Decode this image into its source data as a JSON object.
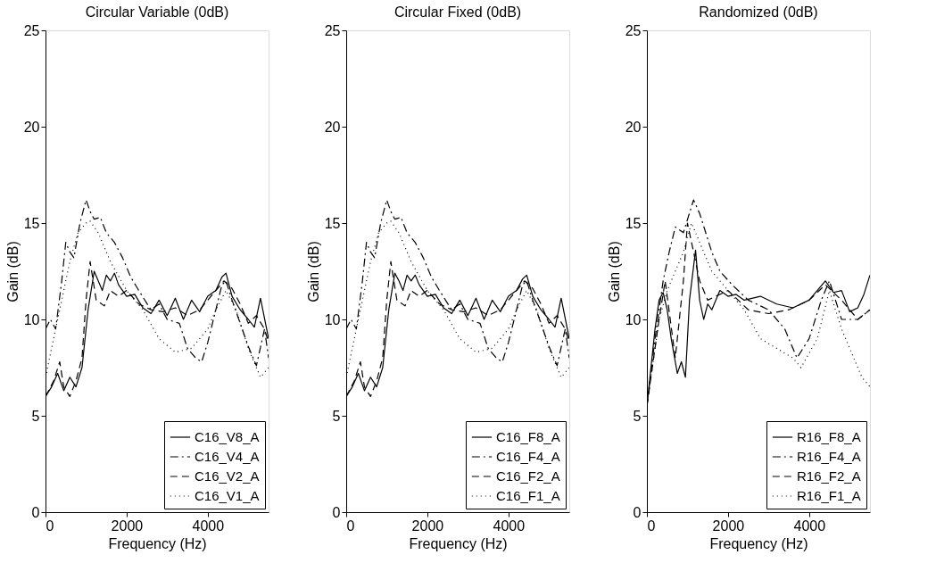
{
  "chart_data": [
    {
      "type": "line",
      "title": "Circular Variable (0dB)",
      "xlabel": "Frequency (Hz)",
      "ylabel": "Gain (dB)",
      "xlim": [
        0,
        5500
      ],
      "ylim": [
        0,
        25
      ],
      "xticks": [
        0,
        2000,
        4000
      ],
      "yticks": [
        0,
        5,
        10,
        15,
        20,
        25
      ],
      "grid": false,
      "legend": "bottom right",
      "series": [
        {
          "name": "C16_V8_A",
          "color": "#000000",
          "line_style": "solid",
          "x": [
            0,
            150,
            300,
            450,
            600,
            750,
            900,
            1050,
            1200,
            1300,
            1400,
            1500,
            1600,
            1700,
            1800,
            2000,
            2200,
            2400,
            2600,
            2800,
            3000,
            3200,
            3400,
            3600,
            3800,
            4000,
            4200,
            4350,
            4450,
            4600,
            4800,
            5000,
            5150,
            5300,
            5500
          ],
          "values": [
            6,
            6.5,
            7.2,
            6.3,
            7,
            6.5,
            7.5,
            10.5,
            12.5,
            12,
            11.5,
            12.3,
            12,
            12.4,
            11.8,
            11.2,
            11.3,
            10.6,
            10.3,
            11,
            10.2,
            11.1,
            10,
            11,
            10.4,
            11.2,
            11.5,
            12.2,
            12.4,
            11.2,
            10.5,
            10,
            9.6,
            11.1,
            9
          ]
        },
        {
          "name": "C16_V4_A",
          "color": "#000000",
          "line_style": "dashdot",
          "x": [
            0,
            120,
            250,
            400,
            500,
            600,
            700,
            850,
            1000,
            1100,
            1200,
            1350,
            1500,
            1700,
            1900,
            2100,
            2300,
            2600,
            2800,
            3000,
            3300,
            3500,
            3700,
            3850,
            4000,
            4200,
            4350,
            4450,
            4600,
            4800,
            5000,
            5200,
            5400,
            5500
          ],
          "values": [
            9.5,
            10,
            9.5,
            12,
            14,
            13.5,
            13.2,
            15,
            16.2,
            15.6,
            15.2,
            15.3,
            14.5,
            14,
            13.2,
            12.2,
            11.5,
            10.5,
            10.8,
            10,
            9.8,
            8.5,
            8,
            7.8,
            8.8,
            10.5,
            11.8,
            12,
            11,
            9.8,
            8.6,
            7.6,
            9.5,
            8
          ]
        },
        {
          "name": "C16_V2_A",
          "color": "#000000",
          "line_style": "dashed",
          "x": [
            0,
            200,
            350,
            450,
            600,
            750,
            900,
            1000,
            1100,
            1250,
            1450,
            1600,
            1800,
            2000,
            2300,
            2600,
            2900,
            3200,
            3500,
            3800,
            4000,
            4200,
            4400,
            4600,
            4800,
            5000,
            5200,
            5400,
            5500
          ],
          "values": [
            6,
            6.8,
            7.8,
            6.5,
            6,
            6.8,
            8,
            11,
            13,
            11,
            10.7,
            11.5,
            11.2,
            11.5,
            10.8,
            10.5,
            10.4,
            10.6,
            10.2,
            10.5,
            11,
            11.5,
            12,
            11.6,
            10.8,
            9.8,
            10.2,
            9.5,
            8.8
          ]
        },
        {
          "name": "C16_V1_A",
          "color": "#000000",
          "line_style": "dotted",
          "x": [
            0,
            200,
            400,
            600,
            800,
            1000,
            1100,
            1300,
            1600,
            2000,
            2400,
            2800,
            3200,
            3600,
            4000,
            4200,
            4450,
            4700,
            5000,
            5300,
            5500
          ],
          "values": [
            7,
            9,
            11,
            13,
            14.5,
            15,
            15.1,
            14.5,
            13,
            11.5,
            10.5,
            9,
            8.3,
            8.5,
            9.5,
            10.5,
            11.5,
            10.5,
            8.5,
            7,
            7.5
          ]
        }
      ]
    },
    {
      "type": "line",
      "title": "Circular Fixed (0dB)",
      "xlabel": "Frequency (Hz)",
      "ylabel": "Gain (dB)",
      "xlim": [
        0,
        5500
      ],
      "ylim": [
        0,
        25
      ],
      "xticks": [
        0,
        2000,
        4000
      ],
      "yticks": [
        0,
        5,
        10,
        15,
        20,
        25
      ],
      "grid": false,
      "legend": "bottom right",
      "series": [
        {
          "name": "C16_F8_A",
          "color": "#000000",
          "line_style": "solid",
          "x": [
            0,
            150,
            300,
            450,
            600,
            750,
            900,
            1050,
            1200,
            1300,
            1400,
            1500,
            1600,
            1700,
            1800,
            2000,
            2200,
            2400,
            2600,
            2800,
            3000,
            3200,
            3400,
            3600,
            3800,
            4000,
            4200,
            4350,
            4450,
            4600,
            4800,
            5000,
            5150,
            5300,
            5500
          ],
          "values": [
            6,
            6.5,
            7.2,
            6.3,
            7,
            6.5,
            7.5,
            10.5,
            12.4,
            12,
            11.5,
            12.3,
            12,
            12.3,
            11.8,
            11.2,
            11.3,
            10.6,
            10.3,
            11,
            10.2,
            11.1,
            10,
            11,
            10.4,
            11.2,
            11.5,
            12.1,
            12.3,
            11.2,
            10.5,
            10,
            9.6,
            11.1,
            9
          ]
        },
        {
          "name": "C16_F4_A",
          "color": "#000000",
          "line_style": "dashdot",
          "x": [
            0,
            120,
            250,
            400,
            500,
            600,
            700,
            850,
            1000,
            1100,
            1200,
            1350,
            1500,
            1700,
            1900,
            2100,
            2300,
            2600,
            2800,
            3000,
            3300,
            3500,
            3700,
            3850,
            4000,
            4200,
            4350,
            4450,
            4600,
            4800,
            5000,
            5200,
            5400,
            5500
          ],
          "values": [
            9.5,
            10,
            9.5,
            12,
            14,
            13.5,
            13.2,
            15,
            16.2,
            15.6,
            15.2,
            15.3,
            14.5,
            14,
            13.2,
            12.2,
            11.5,
            10.5,
            10.8,
            10,
            9.8,
            8.5,
            8,
            7.8,
            8.8,
            10.5,
            11.8,
            12,
            11,
            9.8,
            8.6,
            7.6,
            9.5,
            8
          ]
        },
        {
          "name": "C16_F2_A",
          "color": "#000000",
          "line_style": "dashed",
          "x": [
            0,
            200,
            350,
            450,
            600,
            750,
            900,
            1000,
            1100,
            1250,
            1450,
            1600,
            1800,
            2000,
            2300,
            2600,
            2900,
            3200,
            3500,
            3800,
            4000,
            4200,
            4400,
            4600,
            4800,
            5000,
            5200,
            5400,
            5500
          ],
          "values": [
            6,
            6.8,
            7.8,
            6.5,
            6,
            6.8,
            8,
            11,
            13,
            11,
            10.7,
            11.5,
            11.2,
            11.5,
            10.8,
            10.5,
            10.4,
            10.6,
            10.2,
            10.5,
            11,
            11.5,
            12,
            11.6,
            10.8,
            9.8,
            10.2,
            9.5,
            8.8
          ]
        },
        {
          "name": "C16_F1_A",
          "color": "#000000",
          "line_style": "dotted",
          "x": [
            0,
            200,
            400,
            600,
            800,
            1000,
            1100,
            1300,
            1600,
            2000,
            2400,
            2800,
            3200,
            3600,
            4000,
            4200,
            4450,
            4700,
            5000,
            5300,
            5500
          ],
          "values": [
            7,
            9,
            11,
            13,
            14.5,
            15,
            15.1,
            14.5,
            13,
            11.5,
            10.5,
            9,
            8.3,
            8.5,
            9.5,
            10.5,
            11.5,
            10.5,
            8.5,
            7,
            7.5
          ]
        }
      ]
    },
    {
      "type": "line",
      "title": "Randomized (0dB)",
      "xlabel": "Frequency (Hz)",
      "ylabel": "Gain (dB)",
      "xlim": [
        0,
        5500
      ],
      "ylim": [
        0,
        25
      ],
      "xticks": [
        0,
        2000,
        4000
      ],
      "yticks": [
        0,
        5,
        10,
        15,
        20,
        25
      ],
      "grid": false,
      "legend": "bottom right",
      "series": [
        {
          "name": "R16_F8_A",
          "color": "#000000",
          "line_style": "solid",
          "x": [
            0,
            100,
            200,
            300,
            400,
            500,
            600,
            750,
            850,
            950,
            1050,
            1200,
            1300,
            1400,
            1500,
            1600,
            1800,
            2000,
            2200,
            2400,
            2800,
            3200,
            3600,
            4000,
            4200,
            4400,
            4600,
            4800,
            5000,
            5200,
            5350,
            5500
          ],
          "values": [
            5.5,
            7.5,
            9.5,
            11,
            11.4,
            10.5,
            9,
            7.2,
            7.8,
            7,
            11,
            13.6,
            11,
            10,
            10.8,
            10.5,
            11.5,
            11.2,
            11.3,
            11,
            11.2,
            10.8,
            10.6,
            11,
            11.5,
            12,
            11.4,
            11.5,
            10.4,
            10.6,
            11.3,
            12.3
          ]
        },
        {
          "name": "R16_F4_A",
          "color": "#000000",
          "line_style": "dashdot",
          "x": [
            0,
            200,
            400,
            550,
            700,
            900,
            1150,
            1300,
            1600,
            1800,
            2100,
            2500,
            3000,
            3400,
            3700,
            4000,
            4300,
            4500,
            4800,
            5200,
            5500
          ],
          "values": [
            5.5,
            9,
            12,
            13.5,
            14.8,
            14.5,
            16.2,
            15.5,
            13.5,
            12.5,
            11.8,
            11,
            10.5,
            9.5,
            8,
            9,
            11,
            12,
            10,
            10,
            10.5
          ]
        },
        {
          "name": "R16_F2_A",
          "color": "#000000",
          "line_style": "dashed",
          "x": [
            0,
            300,
            450,
            700,
            900,
            1000,
            1100,
            1300,
            1500,
            2000,
            2500,
            3000,
            3500,
            4000,
            4400,
            4800,
            5200,
            5500
          ],
          "values": [
            5.5,
            10,
            12,
            8,
            12,
            15,
            14,
            12,
            11,
            11.5,
            10.5,
            10.3,
            10.5,
            11,
            11.8,
            11,
            10,
            10.5
          ]
        },
        {
          "name": "R16_F1_A",
          "color": "#000000",
          "line_style": "dotted",
          "x": [
            0,
            300,
            500,
            700,
            900,
            1100,
            1300,
            1600,
            2000,
            2400,
            2800,
            3200,
            3600,
            3800,
            4200,
            4500,
            4800,
            5000,
            5300,
            5500
          ],
          "values": [
            5.5,
            10,
            11.5,
            12.5,
            13.5,
            15,
            14,
            12.5,
            11.5,
            10.5,
            9,
            8.5,
            8,
            7.5,
            9,
            11.5,
            9.5,
            8.5,
            7,
            6.5
          ]
        }
      ]
    }
  ]
}
